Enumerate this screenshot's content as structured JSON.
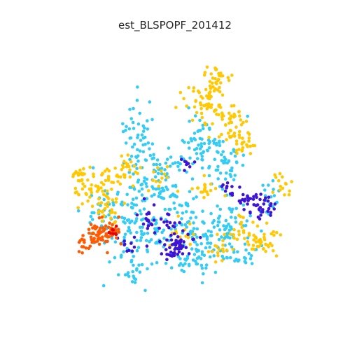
{
  "title": "est_BLSPOPF_201412",
  "colors": {
    "orange_red": "#ff5a00",
    "red": "#e8000b",
    "yellow": "#ffc800",
    "cyan": "#33ccf5",
    "blue_violet": "#3d14d6"
  },
  "legend": "none",
  "axes": "hidden"
}
